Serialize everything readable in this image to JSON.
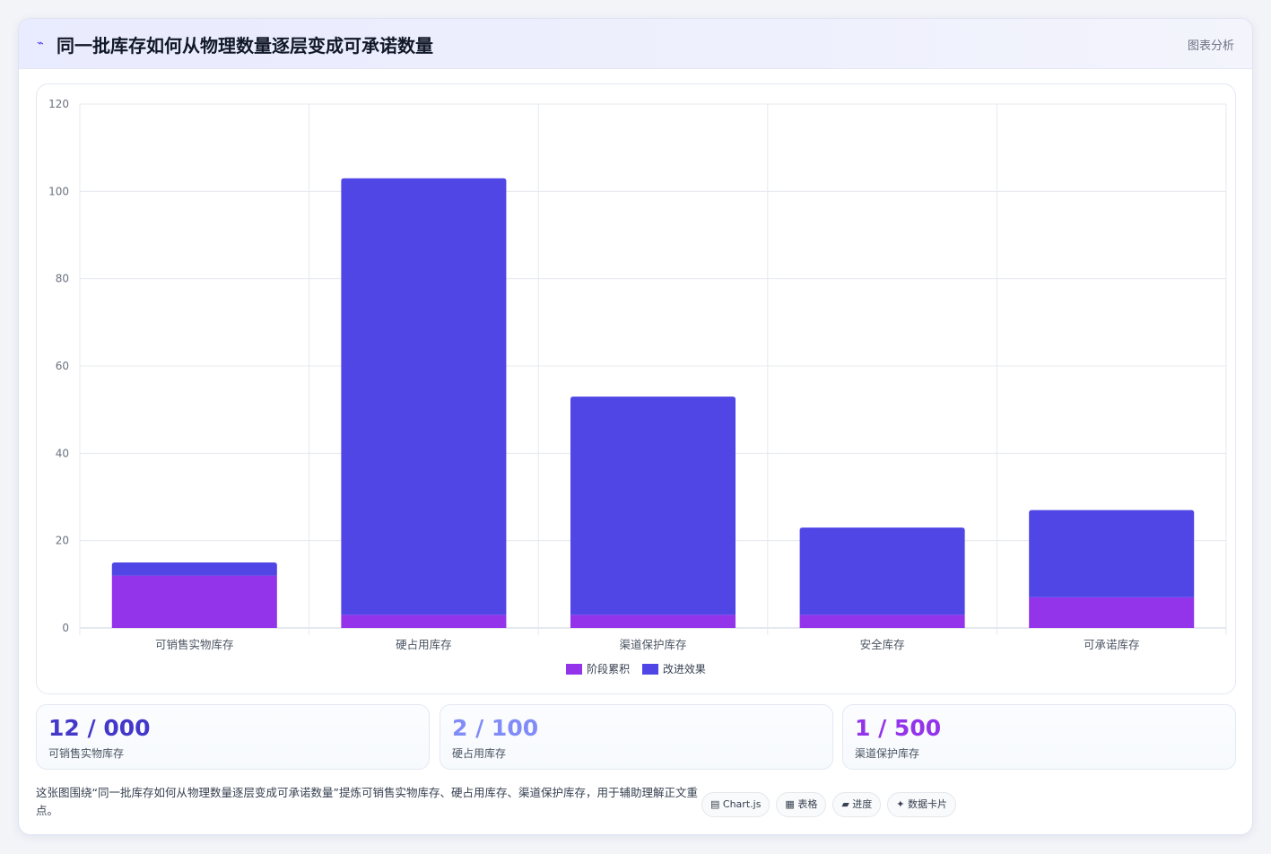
{
  "header": {
    "icon": "chart-line-icon",
    "icon_glyph": "⌁",
    "title": "同一批库存如何从物理数量逐层变成可承诺数量",
    "tag": "图表分析"
  },
  "colors": {
    "stage": "#9333ea",
    "effect": "#4f46e5",
    "stat_1": "#4338ca",
    "stat_2": "#818cf8",
    "stat_3": "#9333ea"
  },
  "chart_data": {
    "type": "bar",
    "stacked": true,
    "categories": [
      "可销售实物库存",
      "硬占用库存",
      "渠道保护库存",
      "安全库存",
      "可承诺库存"
    ],
    "series": [
      {
        "name": "阶段累积",
        "values": [
          12,
          3,
          3,
          3,
          7
        ]
      },
      {
        "name": "改进效果",
        "values": [
          3,
          100,
          50,
          20,
          20
        ]
      }
    ],
    "ylim": [
      0,
      120
    ],
    "yticks": [
      0,
      20,
      40,
      60,
      80,
      100,
      120
    ],
    "grid": true,
    "legend_position": "bottom"
  },
  "stats": [
    {
      "value": "12 / 000",
      "label": "可销售实物库存"
    },
    {
      "value": "2 / 100",
      "label": "硬占用库存"
    },
    {
      "value": "1 / 500",
      "label": "渠道保护库存"
    }
  ],
  "footer": {
    "text": "这张图围绕“同一批库存如何从物理数量逐层变成可承诺数量”提炼可销售实物库存、硬占用库存、渠道保护库存，用于辅助理解正文重点。",
    "chips": [
      {
        "icon": "chart-icon",
        "glyph": "▤",
        "label": "Chart.js"
      },
      {
        "icon": "table-icon",
        "glyph": "▦",
        "label": "表格"
      },
      {
        "icon": "progress-icon",
        "glyph": "▰",
        "label": "进度"
      },
      {
        "icon": "sparkle-icon",
        "glyph": "✦",
        "label": "数据卡片"
      }
    ]
  }
}
